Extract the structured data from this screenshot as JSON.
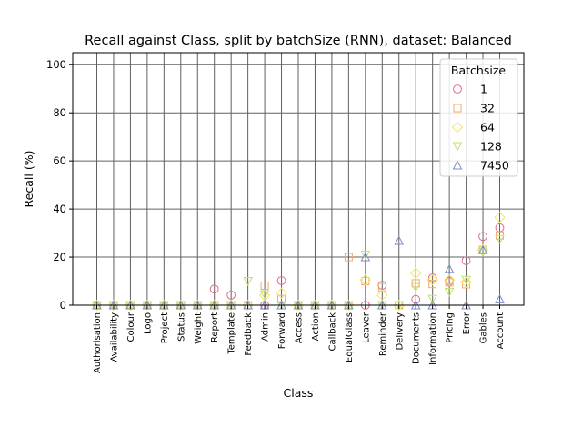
{
  "chart_data": {
    "type": "scatter",
    "title": "Recall against Class, split by batchSize (RNN), dataset: Balanced",
    "xlabel": "Class",
    "ylabel": "Recall (%)",
    "ylim": [
      0,
      105
    ],
    "yticks": [
      0,
      20,
      40,
      60,
      80,
      100
    ],
    "grid": true,
    "legend": {
      "title": "Batchsize",
      "position": "top-right"
    },
    "categories": [
      "Authorisation",
      "Availability",
      "Colour",
      "Logo",
      "Project",
      "Status",
      "Weight",
      "Report",
      "Template",
      "Feedback",
      "Admin",
      "Forward",
      "Access",
      "Action",
      "Callback",
      "EqualGlass",
      "Leaver",
      "Reminder",
      "Delivery",
      "Documents",
      "Information",
      "Pricing",
      "Error",
      "Gables",
      "Account"
    ],
    "series": [
      {
        "name": "1",
        "marker": "circle",
        "color": "#e06c8c",
        "values": [
          0,
          0,
          0,
          0,
          0,
          0,
          0,
          6.7,
          4.2,
          0,
          0,
          10.2,
          0,
          0,
          0,
          0,
          0,
          8.3,
          0,
          2.4,
          11.3,
          10,
          18.5,
          28.6,
          32.2
        ]
      },
      {
        "name": "32",
        "marker": "square",
        "color": "#f5a86b",
        "values": [
          0,
          0,
          0,
          0,
          0,
          0,
          0,
          0,
          0,
          0,
          8.1,
          2.6,
          0,
          0,
          0,
          20,
          10,
          7.5,
          0,
          9.1,
          8.8,
          9.5,
          8.7,
          23,
          29
        ]
      },
      {
        "name": "64",
        "marker": "diamond",
        "color": "#f2e86a",
        "values": [
          0,
          0,
          0,
          0,
          0,
          0,
          0,
          0,
          0,
          0,
          4.1,
          5,
          0,
          0,
          0,
          0,
          10.5,
          4.2,
          0,
          13.3,
          10.5,
          10.5,
          9.5,
          23,
          36.5
        ]
      },
      {
        "name": "128",
        "marker": "triangle-down",
        "color": "#c4e070",
        "values": [
          0,
          0,
          0,
          0,
          0,
          0,
          0,
          0,
          0,
          10,
          4.5,
          0,
          0,
          0,
          0,
          0,
          21,
          0,
          0,
          7.5,
          2.6,
          5.5,
          10.5,
          22,
          27.5
        ]
      },
      {
        "name": "7450",
        "marker": "triangle-up",
        "color": "#7b8fc8",
        "values": [
          0,
          0,
          0,
          0,
          0,
          0,
          0,
          0,
          0,
          0,
          0,
          0,
          0,
          0,
          0,
          0,
          20,
          0,
          26.8,
          0,
          0,
          15,
          0,
          23,
          2.5
        ]
      }
    ]
  }
}
